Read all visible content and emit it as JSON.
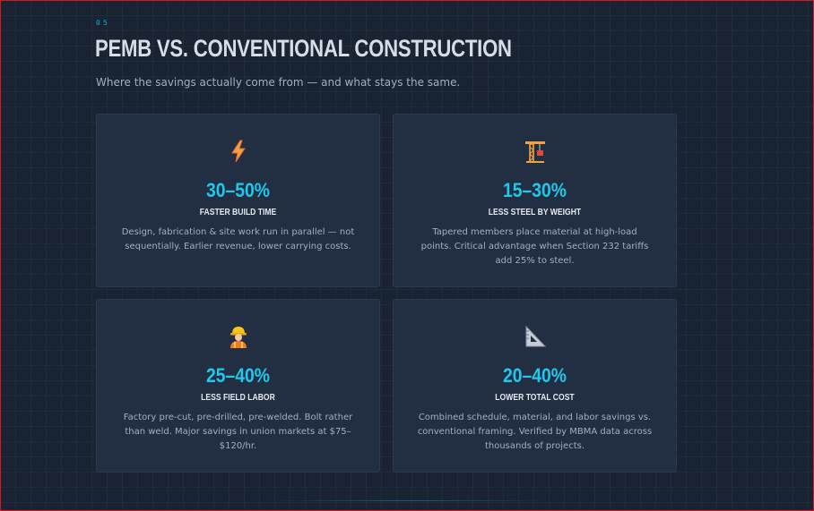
{
  "slide": {
    "number": "05",
    "title": "PEMB VS. CONVENTIONAL CONSTRUCTION",
    "subtitle": "Where the savings actually come from — and what stays the same."
  },
  "cards": [
    {
      "icon": "lightning-bolt-icon",
      "stat": "30–50%",
      "label": "FASTER BUILD TIME",
      "description": "Design, fabrication & site work run in parallel — not sequentially. Earlier revenue, lower carrying costs."
    },
    {
      "icon": "crane-icon",
      "stat": "15–30%",
      "label": "LESS STEEL BY WEIGHT",
      "description": "Tapered members place material at high-load points. Critical advantage when Section 232 tariffs add 25% to steel."
    },
    {
      "icon": "construction-worker-icon",
      "stat": "25–40%",
      "label": "LESS FIELD LABOR",
      "description": "Factory pre-cut, pre-drilled, pre-welded. Bolt rather than weld. Major savings in union markets at $75–$120/hr."
    },
    {
      "icon": "triangular-ruler-icon",
      "stat": "20–40%",
      "label": "LOWER TOTAL COST",
      "description": "Combined schedule, material, and labor savings vs. conventional framing. Verified by MBMA data across thousands of projects."
    }
  ],
  "colors": {
    "background": "#1a2332",
    "card": "#222f42",
    "accent": "#20c8ec",
    "title": "#d6dde6",
    "muted": "#9fb0c4"
  }
}
